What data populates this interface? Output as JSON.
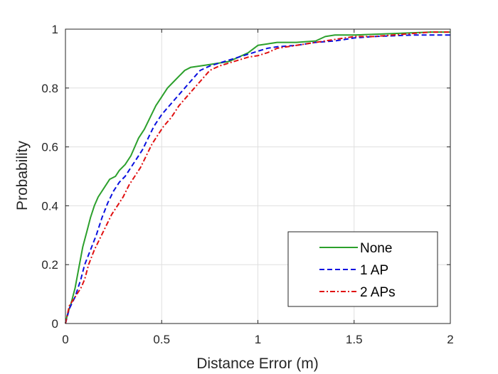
{
  "chart_data": {
    "type": "line",
    "title": "",
    "xlabel": "Distance Error (m)",
    "ylabel": "Probability",
    "xlim": [
      0,
      2
    ],
    "ylim": [
      0,
      1
    ],
    "xticks": [
      0,
      0.5,
      1,
      1.5,
      2
    ],
    "xtick_labels": [
      "0",
      "0.5",
      "1",
      "1.5",
      "2"
    ],
    "yticks": [
      0,
      0.2,
      0.4,
      0.6,
      0.8,
      1
    ],
    "ytick_labels": [
      "0",
      "0.2",
      "0.4",
      "0.6",
      "0.8",
      "1"
    ],
    "grid": true,
    "legend_position": "bottom-right",
    "series": [
      {
        "name": "None",
        "color": "#2ca02c",
        "dash": "solid",
        "points": [
          [
            0,
            0
          ],
          [
            0.01,
            0.03
          ],
          [
            0.03,
            0.07
          ],
          [
            0.05,
            0.12
          ],
          [
            0.07,
            0.19
          ],
          [
            0.09,
            0.26
          ],
          [
            0.11,
            0.31
          ],
          [
            0.13,
            0.36
          ],
          [
            0.15,
            0.4
          ],
          [
            0.17,
            0.43
          ],
          [
            0.2,
            0.46
          ],
          [
            0.23,
            0.49
          ],
          [
            0.26,
            0.5
          ],
          [
            0.28,
            0.52
          ],
          [
            0.31,
            0.54
          ],
          [
            0.34,
            0.57
          ],
          [
            0.36,
            0.6
          ],
          [
            0.38,
            0.63
          ],
          [
            0.41,
            0.66
          ],
          [
            0.44,
            0.7
          ],
          [
            0.47,
            0.74
          ],
          [
            0.5,
            0.77
          ],
          [
            0.53,
            0.8
          ],
          [
            0.56,
            0.82
          ],
          [
            0.59,
            0.84
          ],
          [
            0.62,
            0.86
          ],
          [
            0.65,
            0.87
          ],
          [
            0.7,
            0.875
          ],
          [
            0.75,
            0.88
          ],
          [
            0.8,
            0.885
          ],
          [
            0.85,
            0.89
          ],
          [
            0.9,
            0.905
          ],
          [
            0.95,
            0.92
          ],
          [
            1.0,
            0.945
          ],
          [
            1.05,
            0.95
          ],
          [
            1.1,
            0.955
          ],
          [
            1.2,
            0.955
          ],
          [
            1.3,
            0.96
          ],
          [
            1.35,
            0.975
          ],
          [
            1.4,
            0.98
          ],
          [
            1.5,
            0.98
          ],
          [
            1.7,
            0.985
          ],
          [
            1.9,
            0.99
          ],
          [
            2.0,
            0.99
          ]
        ]
      },
      {
        "name": "1 AP",
        "color": "#0a10e0",
        "dash": "dashed",
        "points": [
          [
            0,
            0
          ],
          [
            0.02,
            0.05
          ],
          [
            0.05,
            0.09
          ],
          [
            0.08,
            0.15
          ],
          [
            0.1,
            0.2
          ],
          [
            0.13,
            0.25
          ],
          [
            0.16,
            0.3
          ],
          [
            0.19,
            0.36
          ],
          [
            0.22,
            0.41
          ],
          [
            0.25,
            0.45
          ],
          [
            0.28,
            0.48
          ],
          [
            0.31,
            0.5
          ],
          [
            0.34,
            0.53
          ],
          [
            0.37,
            0.56
          ],
          [
            0.4,
            0.59
          ],
          [
            0.43,
            0.63
          ],
          [
            0.46,
            0.67
          ],
          [
            0.5,
            0.71
          ],
          [
            0.54,
            0.74
          ],
          [
            0.58,
            0.77
          ],
          [
            0.62,
            0.8
          ],
          [
            0.66,
            0.83
          ],
          [
            0.7,
            0.86
          ],
          [
            0.75,
            0.875
          ],
          [
            0.8,
            0.885
          ],
          [
            0.85,
            0.895
          ],
          [
            0.9,
            0.905
          ],
          [
            0.95,
            0.915
          ],
          [
            1.0,
            0.925
          ],
          [
            1.05,
            0.935
          ],
          [
            1.1,
            0.94
          ],
          [
            1.2,
            0.945
          ],
          [
            1.3,
            0.955
          ],
          [
            1.4,
            0.96
          ],
          [
            1.5,
            0.97
          ],
          [
            1.6,
            0.975
          ],
          [
            1.8,
            0.98
          ],
          [
            2.0,
            0.98
          ]
        ]
      },
      {
        "name": "2 APs",
        "color": "#e01010",
        "dash": "dashdot",
        "points": [
          [
            0,
            0
          ],
          [
            0.02,
            0.06
          ],
          [
            0.05,
            0.09
          ],
          [
            0.08,
            0.12
          ],
          [
            0.1,
            0.15
          ],
          [
            0.12,
            0.2
          ],
          [
            0.15,
            0.25
          ],
          [
            0.18,
            0.29
          ],
          [
            0.21,
            0.33
          ],
          [
            0.24,
            0.37
          ],
          [
            0.27,
            0.4
          ],
          [
            0.3,
            0.43
          ],
          [
            0.33,
            0.47
          ],
          [
            0.36,
            0.5
          ],
          [
            0.39,
            0.53
          ],
          [
            0.42,
            0.57
          ],
          [
            0.45,
            0.61
          ],
          [
            0.48,
            0.64
          ],
          [
            0.51,
            0.67
          ],
          [
            0.55,
            0.7
          ],
          [
            0.59,
            0.74
          ],
          [
            0.63,
            0.77
          ],
          [
            0.67,
            0.8
          ],
          [
            0.71,
            0.83
          ],
          [
            0.75,
            0.86
          ],
          [
            0.8,
            0.875
          ],
          [
            0.85,
            0.885
          ],
          [
            0.9,
            0.895
          ],
          [
            0.95,
            0.905
          ],
          [
            1.0,
            0.91
          ],
          [
            1.05,
            0.92
          ],
          [
            1.1,
            0.935
          ],
          [
            1.2,
            0.945
          ],
          [
            1.3,
            0.955
          ],
          [
            1.4,
            0.965
          ],
          [
            1.5,
            0.975
          ],
          [
            1.6,
            0.975
          ],
          [
            1.7,
            0.98
          ],
          [
            1.8,
            0.985
          ],
          [
            1.9,
            0.99
          ],
          [
            2.0,
            0.99
          ]
        ]
      }
    ]
  }
}
